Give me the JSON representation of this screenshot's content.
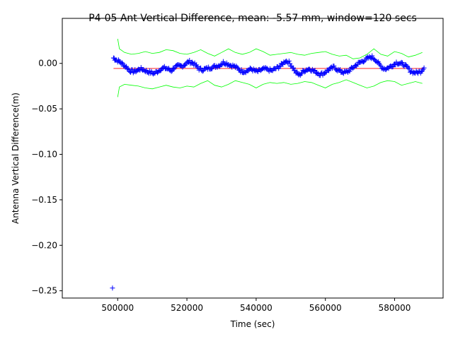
{
  "chart_data": {
    "type": "scatter",
    "title": "P4-05 Ant Vertical Difference, mean: -5.57 mm, window=120 secs",
    "xlabel": "Time (sec)",
    "ylabel": "Antenna Vertical Difference(m)",
    "xlim": [
      484000,
      594000
    ],
    "ylim": [
      -0.258,
      0.0495
    ],
    "xticks": [
      500000,
      520000,
      540000,
      560000,
      580000
    ],
    "xtick_labels": [
      "500000",
      "520000",
      "540000",
      "560000",
      "580000"
    ],
    "yticks": [
      0.0,
      -0.05,
      -0.1,
      -0.15,
      -0.2,
      -0.25
    ],
    "ytick_labels": [
      "0.00",
      "−0.05",
      "−0.10",
      "−0.15",
      "−0.20",
      "−0.25"
    ],
    "grid": false,
    "colors": {
      "data": "#0000ff",
      "mean": "#ff0000",
      "bounds": "#00ff00"
    },
    "mean_value": -0.00557,
    "outlier": {
      "x": 498500,
      "y": -0.247
    },
    "series": [
      {
        "role": "data",
        "marker": "+",
        "x": [
          498800,
          499500,
          500500,
          501500,
          502500,
          503500,
          504500,
          505500,
          506500,
          507500,
          508500,
          509500,
          510500,
          511500,
          512500,
          513500,
          514500,
          515500,
          516500,
          517500,
          518500,
          519500,
          520500,
          521500,
          522500,
          523500,
          524500,
          525500,
          526500,
          527500,
          528500,
          529500,
          530500,
          531500,
          532500,
          533500,
          534500,
          535500,
          536500,
          537500,
          538500,
          539500,
          540500,
          541500,
          542500,
          543500,
          544500,
          545500,
          546500,
          547500,
          548500,
          549500,
          550500,
          551500,
          552500,
          553500,
          554500,
          555500,
          556500,
          557500,
          558500,
          559500,
          560500,
          561500,
          562500,
          563500,
          564500,
          565500,
          566500,
          567500,
          568500,
          569500,
          570500,
          571500,
          572500,
          573500,
          574500,
          575500,
          576500,
          577500,
          578500,
          579500,
          580500,
          581500,
          582500,
          583500,
          584500,
          585500,
          586500,
          587500,
          588500
        ],
        "y": [
          0.006,
          0.004,
          0.002,
          -0.001,
          -0.004,
          -0.008,
          -0.009,
          -0.008,
          -0.006,
          -0.007,
          -0.009,
          -0.01,
          -0.011,
          -0.009,
          -0.006,
          -0.005,
          -0.006,
          -0.008,
          -0.004,
          -0.003,
          -0.003,
          -0.001,
          0.002,
          0.001,
          -0.002,
          -0.006,
          -0.007,
          -0.006,
          -0.005,
          -0.004,
          -0.003,
          -0.002,
          0.001,
          0.0,
          -0.002,
          -0.003,
          -0.005,
          -0.008,
          -0.009,
          -0.008,
          -0.006,
          -0.008,
          -0.009,
          -0.007,
          -0.006,
          -0.007,
          -0.008,
          -0.006,
          -0.004,
          -0.001,
          0.003,
          0.001,
          -0.004,
          -0.01,
          -0.013,
          -0.009,
          -0.007,
          -0.006,
          -0.008,
          -0.01,
          -0.012,
          -0.011,
          -0.008,
          -0.006,
          -0.004,
          -0.007,
          -0.009,
          -0.01,
          -0.009,
          -0.006,
          -0.003,
          0.0,
          0.002,
          0.004,
          0.006,
          0.007,
          0.004,
          -0.001,
          -0.005,
          -0.006,
          -0.004,
          -0.002,
          0.001,
          0.0,
          -0.001,
          -0.004,
          -0.008,
          -0.01,
          -0.01,
          -0.009,
          -0.005
        ]
      },
      {
        "role": "upper-bound",
        "x": [
          500000,
          500500,
          502000,
          504000,
          506000,
          508000,
          510000,
          512000,
          514000,
          516000,
          518000,
          520000,
          522000,
          524000,
          526000,
          528000,
          530000,
          532000,
          534000,
          536000,
          538000,
          540000,
          542000,
          544000,
          546000,
          548000,
          550000,
          552000,
          554000,
          556000,
          558000,
          560000,
          562000,
          564000,
          566000,
          568000,
          570000,
          572000,
          574000,
          576000,
          578000,
          580000,
          582000,
          584000,
          586000,
          588000
        ],
        "y": [
          0.027,
          0.016,
          0.012,
          0.01,
          0.011,
          0.013,
          0.011,
          0.012,
          0.015,
          0.014,
          0.011,
          0.01,
          0.012,
          0.015,
          0.011,
          0.008,
          0.012,
          0.016,
          0.012,
          0.01,
          0.012,
          0.016,
          0.013,
          0.009,
          0.01,
          0.011,
          0.012,
          0.01,
          0.009,
          0.011,
          0.012,
          0.013,
          0.01,
          0.008,
          0.009,
          0.005,
          0.006,
          0.01,
          0.016,
          0.01,
          0.008,
          0.013,
          0.011,
          0.007,
          0.009,
          0.012
        ]
      },
      {
        "role": "lower-bound",
        "x": [
          500000,
          500500,
          502000,
          504000,
          506000,
          508000,
          510000,
          512000,
          514000,
          516000,
          518000,
          520000,
          522000,
          524000,
          526000,
          528000,
          530000,
          532000,
          534000,
          536000,
          538000,
          540000,
          542000,
          544000,
          546000,
          548000,
          550000,
          552000,
          554000,
          556000,
          558000,
          560000,
          562000,
          564000,
          566000,
          568000,
          570000,
          572000,
          574000,
          576000,
          578000,
          580000,
          582000,
          584000,
          586000,
          588000
        ],
        "y": [
          -0.037,
          -0.026,
          -0.023,
          -0.024,
          -0.025,
          -0.027,
          -0.028,
          -0.026,
          -0.024,
          -0.026,
          -0.027,
          -0.025,
          -0.026,
          -0.022,
          -0.019,
          -0.024,
          -0.026,
          -0.023,
          -0.019,
          -0.021,
          -0.023,
          -0.027,
          -0.023,
          -0.021,
          -0.022,
          -0.021,
          -0.023,
          -0.022,
          -0.02,
          -0.021,
          -0.024,
          -0.027,
          -0.023,
          -0.021,
          -0.018,
          -0.021,
          -0.024,
          -0.027,
          -0.025,
          -0.021,
          -0.019,
          -0.02,
          -0.024,
          -0.022,
          -0.02,
          -0.022
        ]
      }
    ]
  }
}
